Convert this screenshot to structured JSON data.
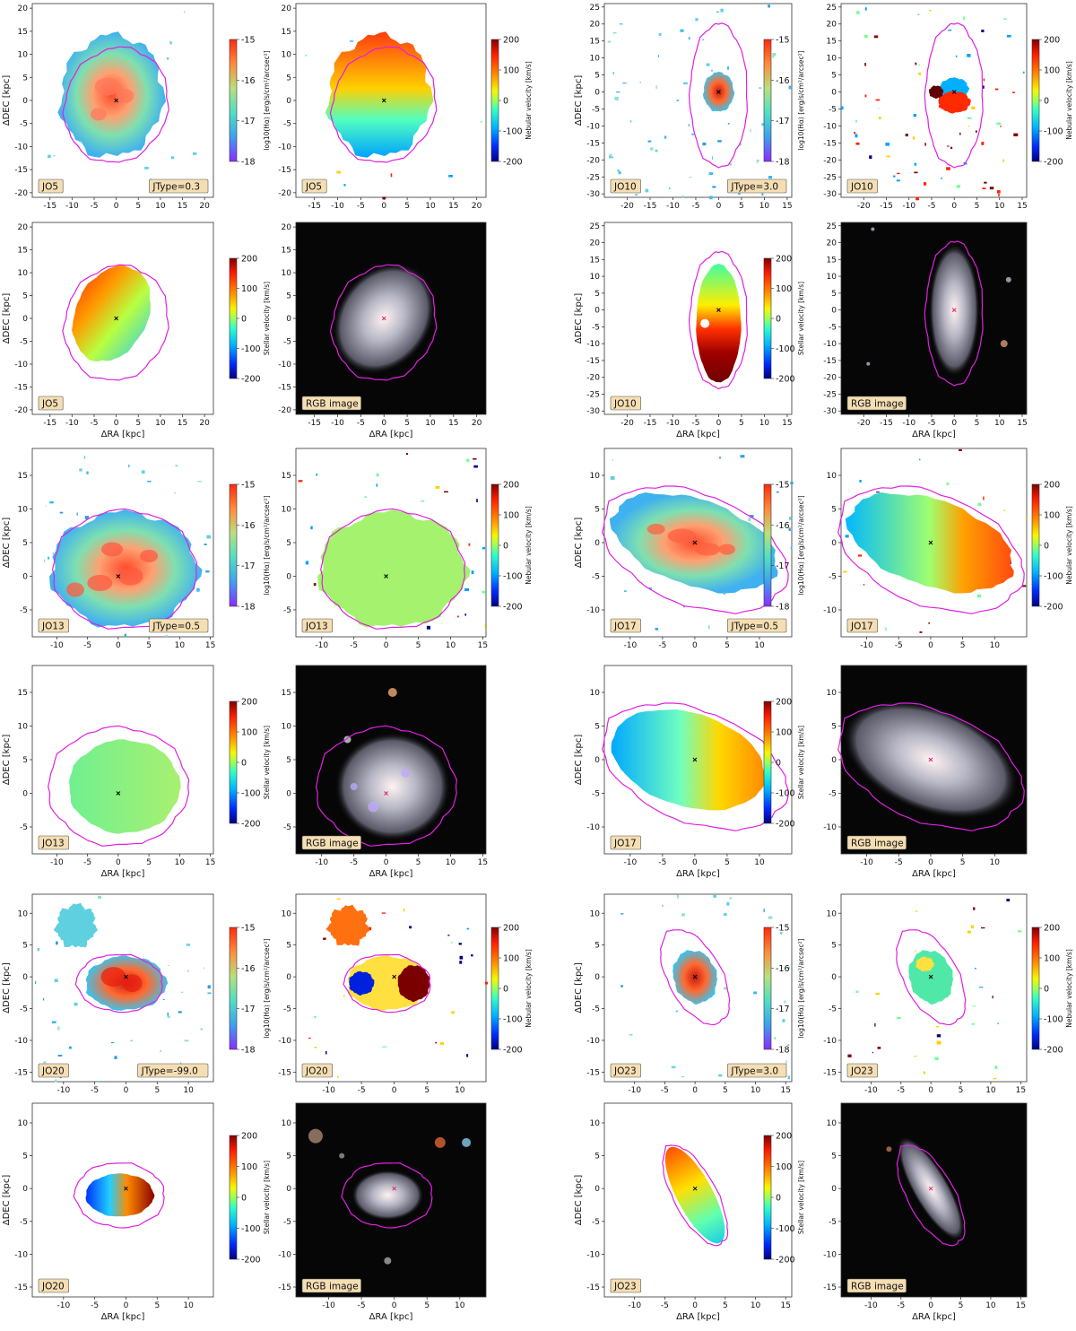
{
  "figure": {
    "axis_labels": {
      "ra": "ΔRA [kpc]",
      "dec": "ΔDEC [kpc]"
    },
    "colorbar_labels": {
      "halpha": "log10(Hα) [erg/s/cm²/arcsec²]",
      "nebular": "Nebular velocity [km/s]",
      "stellar": "Stellar velocity [km/s]"
    },
    "colorbar_ticks": {
      "halpha": [
        "-15",
        "-16",
        "-17",
        "-18"
      ],
      "velocity": [
        "200",
        "100",
        "0",
        "-100",
        "-200"
      ]
    },
    "rgb_label": "RGB image",
    "colors": {
      "contour": "#e020e0",
      "label_box": "#f5deb3",
      "rgb_background": "#060606"
    },
    "galaxies": [
      {
        "id": "JO5",
        "jtype": "JType=0.3",
        "xticks": [
          "-15",
          "-10",
          "-5",
          "0",
          "5",
          "10",
          "15",
          "20"
        ],
        "yticks": [
          "20",
          "15",
          "10",
          "5",
          "0",
          "-5",
          "-10",
          "-15",
          "-20"
        ],
        "xlim": [
          -19,
          22
        ],
        "ylim": [
          -21,
          21
        ]
      },
      {
        "id": "JO10",
        "jtype": "JType=3.0",
        "xticks": [
          "-20",
          "-15",
          "-10",
          "-5",
          "0",
          "5",
          "10",
          "15"
        ],
        "yticks": [
          "25",
          "20",
          "15",
          "10",
          "5",
          "0",
          "-5",
          "-10",
          "-15",
          "-20",
          "-25",
          "-30"
        ],
        "xlim": [
          -25,
          16
        ],
        "ylim": [
          -31,
          26
        ]
      },
      {
        "id": "JO13",
        "jtype": "JType=0.5",
        "xticks": [
          "-10",
          "-5",
          "0",
          "5",
          "10",
          "15"
        ],
        "yticks": [
          "15",
          "10",
          "5",
          "0",
          "-5"
        ],
        "xlim": [
          -14,
          15.5
        ],
        "ylim": [
          -9,
          19
        ]
      },
      {
        "id": "JO17",
        "jtype": "JType=0.5",
        "xticks": [
          "-10",
          "-5",
          "0",
          "5",
          "10"
        ],
        "yticks": [
          "10",
          "5",
          "0",
          "-5",
          "-10"
        ],
        "xlim": [
          -14,
          15
        ],
        "ylim": [
          -14,
          14
        ]
      },
      {
        "id": "JO20",
        "jtype": "JType=-99.0",
        "xticks": [
          "-10",
          "-5",
          "0",
          "5",
          "10"
        ],
        "yticks": [
          "10",
          "5",
          "0",
          "-5",
          "-10",
          "-15"
        ],
        "xlim": [
          -15,
          14
        ],
        "ylim": [
          -16.5,
          13
        ]
      },
      {
        "id": "JO23",
        "jtype": "JType=3.0",
        "xticks": [
          "-10",
          "-5",
          "0",
          "5",
          "10",
          "15"
        ],
        "yticks": [
          "10",
          "5",
          "0",
          "-5",
          "-10",
          "-15"
        ],
        "xlim": [
          -15,
          16
        ],
        "ylim": [
          -16.5,
          13
        ]
      }
    ]
  }
}
